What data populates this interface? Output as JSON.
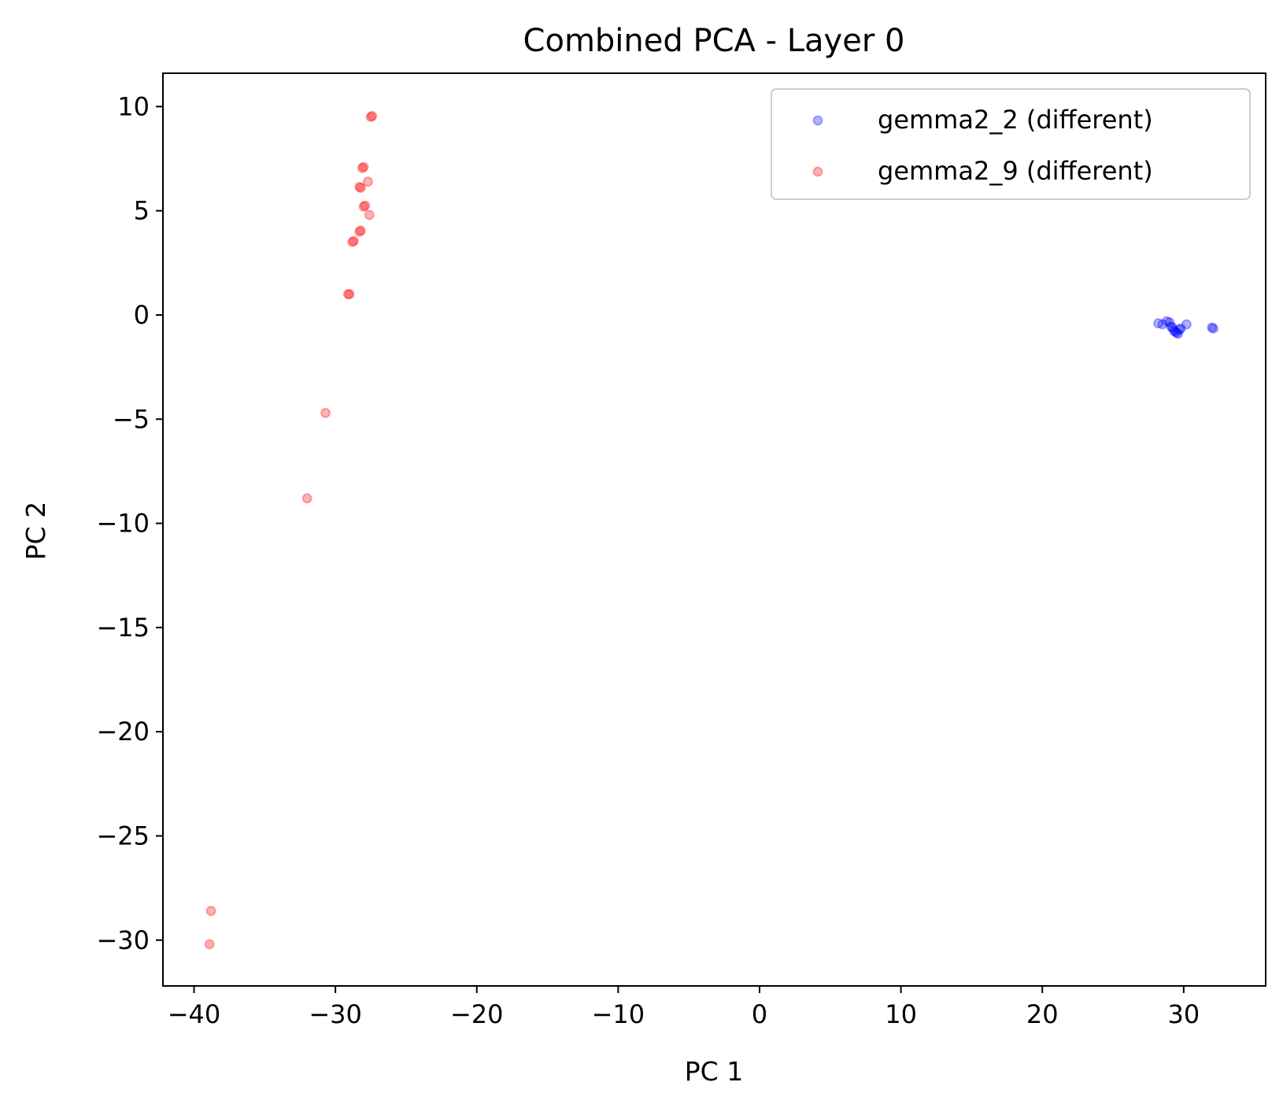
{
  "chart_data": {
    "type": "scatter",
    "title": "Combined PCA - Layer 0",
    "xlabel": "PC 1",
    "ylabel": "PC 2",
    "xlim": [
      -42.2,
      35.8
    ],
    "ylim": [
      -32.2,
      11.6
    ],
    "xticks": [
      -40,
      -30,
      -20,
      -10,
      0,
      10,
      20,
      30
    ],
    "yticks": [
      10,
      5,
      0,
      -5,
      -10,
      -15,
      -20,
      -25,
      -30
    ],
    "xtick_labels": [
      "−40",
      "−30",
      "−20",
      "−10",
      "0",
      "10",
      "20",
      "30"
    ],
    "ytick_labels": [
      "10",
      "5",
      "0",
      "−5",
      "−10",
      "−15",
      "−20",
      "−25",
      "−30"
    ],
    "grid": false,
    "legend_position": "top-right",
    "series": [
      {
        "name": "gemma2_2 (different)",
        "color": "#0000ff",
        "points": [
          [
            28.2,
            -0.4
          ],
          [
            28.5,
            -0.45
          ],
          [
            28.8,
            -0.3
          ],
          [
            29.0,
            -0.35
          ],
          [
            29.1,
            -0.55
          ],
          [
            29.2,
            -0.6
          ],
          [
            29.3,
            -0.75
          ],
          [
            29.4,
            -0.8
          ],
          [
            29.5,
            -0.85
          ],
          [
            29.6,
            -0.9
          ],
          [
            29.7,
            -0.7
          ],
          [
            29.8,
            -0.65
          ],
          [
            30.2,
            -0.45
          ],
          [
            32.0,
            -0.6
          ],
          [
            32.1,
            -0.65
          ]
        ]
      },
      {
        "name": "gemma2_9 (different)",
        "color": "#ff0000",
        "points": [
          [
            -27.4,
            9.55
          ],
          [
            -27.5,
            9.5
          ],
          [
            -28.0,
            7.1
          ],
          [
            -28.1,
            7.05
          ],
          [
            -27.7,
            6.4
          ],
          [
            -28.3,
            6.15
          ],
          [
            -28.2,
            6.1
          ],
          [
            -27.9,
            5.25
          ],
          [
            -28.0,
            5.2
          ],
          [
            -27.6,
            4.8
          ],
          [
            -28.2,
            4.05
          ],
          [
            -28.3,
            4.0
          ],
          [
            -28.7,
            3.55
          ],
          [
            -28.8,
            3.5
          ],
          [
            -29.1,
            1.0
          ],
          [
            -29.0,
            1.0
          ],
          [
            -30.7,
            -4.7
          ],
          [
            -32.0,
            -8.8
          ],
          [
            -38.8,
            -28.6
          ],
          [
            -38.9,
            -30.2
          ]
        ]
      }
    ]
  }
}
